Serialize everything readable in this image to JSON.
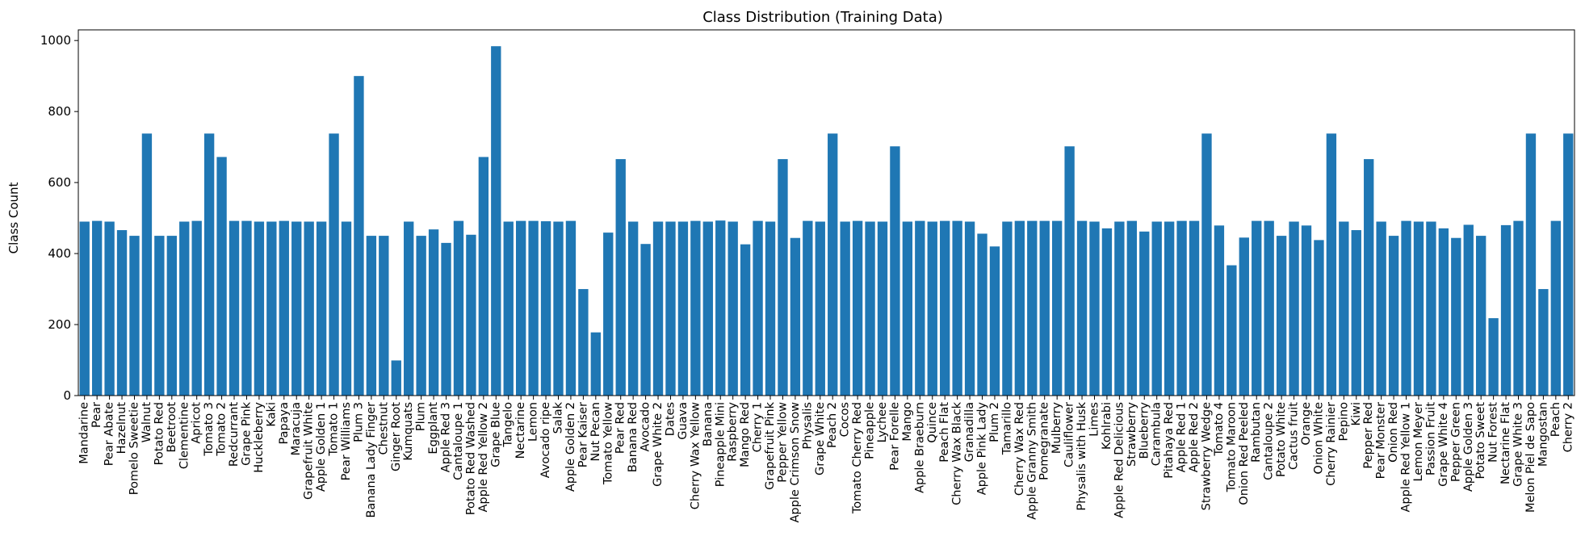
{
  "chart_data": {
    "type": "bar",
    "title": "Class Distribution (Training Data)",
    "xlabel": "",
    "ylabel": "Class Count",
    "ylim": [
      0,
      1030
    ],
    "yticks": [
      0,
      200,
      400,
      600,
      800,
      1000
    ],
    "grid": false,
    "bar_color": "#1f77b4",
    "categories": [
      "Mandarine",
      "Pear",
      "Pear Abate",
      "Hazelnut",
      "Pomelo Sweetie",
      "Walnut",
      "Potato Red",
      "Beetroot",
      "Clementine",
      "Apricot",
      "Tomato 3",
      "Tomato 2",
      "Redcurrant",
      "Grape Pink",
      "Huckleberry",
      "Kaki",
      "Papaya",
      "Maracuja",
      "Grapefruit White",
      "Apple Golden 1",
      "Tomato 1",
      "Pear Williams",
      "Plum 3",
      "Banana Lady Finger",
      "Chestnut",
      "Ginger Root",
      "Kumquats",
      "Plum",
      "Eggplant",
      "Apple Red 3",
      "Cantaloupe 1",
      "Potato Red Washed",
      "Apple Red Yellow 2",
      "Grape Blue",
      "Tangelo",
      "Nectarine",
      "Lemon",
      "Avocado ripe",
      "Salak",
      "Apple Golden 2",
      "Pear Kaiser",
      "Nut Pecan",
      "Tomato Yellow",
      "Pear Red",
      "Banana Red",
      "Avocado",
      "Grape White 2",
      "Dates",
      "Guava",
      "Cherry Wax Yellow",
      "Banana",
      "Pineapple Mini",
      "Raspberry",
      "Mango Red",
      "Cherry 1",
      "Grapefruit Pink",
      "Pepper Yellow",
      "Apple Crimson Snow",
      "Physalis",
      "Grape White",
      "Peach 2",
      "Cocos",
      "Tomato Cherry Red",
      "Pineapple",
      "Lychee",
      "Pear Forelle",
      "Mango",
      "Apple Braeburn",
      "Quince",
      "Peach Flat",
      "Cherry Wax Black",
      "Granadilla",
      "Apple Pink Lady",
      "Plum 2",
      "Tamarillo",
      "Cherry Wax Red",
      "Apple Granny Smith",
      "Pomegranate",
      "Mulberry",
      "Cauliflower",
      "Physalis with Husk",
      "Limes",
      "Kohlrabi",
      "Apple Red Delicious",
      "Strawberry",
      "Blueberry",
      "Carambula",
      "Pitahaya Red",
      "Apple Red 1",
      "Apple Red 2",
      "Strawberry Wedge",
      "Tomato 4",
      "Tomato Maroon",
      "Onion Red Peeled",
      "Rambutan",
      "Cantaloupe 2",
      "Potato White",
      "Cactus fruit",
      "Orange",
      "Onion White",
      "Cherry Rainier",
      "Pepino",
      "Kiwi",
      "Pepper Red",
      "Pear Monster",
      "Onion Red",
      "Apple Red Yellow 1",
      "Lemon Meyer",
      "Passion Fruit",
      "Grape White 4",
      "Pepper Green",
      "Apple Golden 3",
      "Potato Sweet",
      "Nut Forest",
      "Nectarine Flat",
      "Grape White 3",
      "Melon Piel de Sapo",
      "Mangostan",
      "Peach",
      "Cherry 2"
    ],
    "values": [
      490,
      492,
      490,
      466,
      450,
      738,
      450,
      450,
      490,
      492,
      738,
      672,
      492,
      492,
      490,
      490,
      492,
      490,
      490,
      490,
      738,
      490,
      900,
      450,
      450,
      99,
      490,
      450,
      468,
      430,
      492,
      453,
      672,
      984,
      490,
      492,
      492,
      491,
      490,
      492,
      300,
      178,
      459,
      666,
      490,
      427,
      490,
      490,
      490,
      492,
      490,
      493,
      490,
      426,
      492,
      490,
      666,
      444,
      492,
      490,
      738,
      490,
      492,
      490,
      490,
      702,
      490,
      492,
      490,
      492,
      492,
      490,
      456,
      420,
      490,
      492,
      492,
      492,
      492,
      702,
      492,
      490,
      471,
      490,
      492,
      462,
      490,
      490,
      492,
      492,
      738,
      479,
      367,
      445,
      492,
      492,
      450,
      490,
      479,
      438,
      738,
      490,
      466,
      666,
      490,
      450,
      492,
      490,
      490,
      471,
      444,
      481,
      450,
      218,
      480,
      492,
      738,
      300,
      492,
      738
    ]
  }
}
